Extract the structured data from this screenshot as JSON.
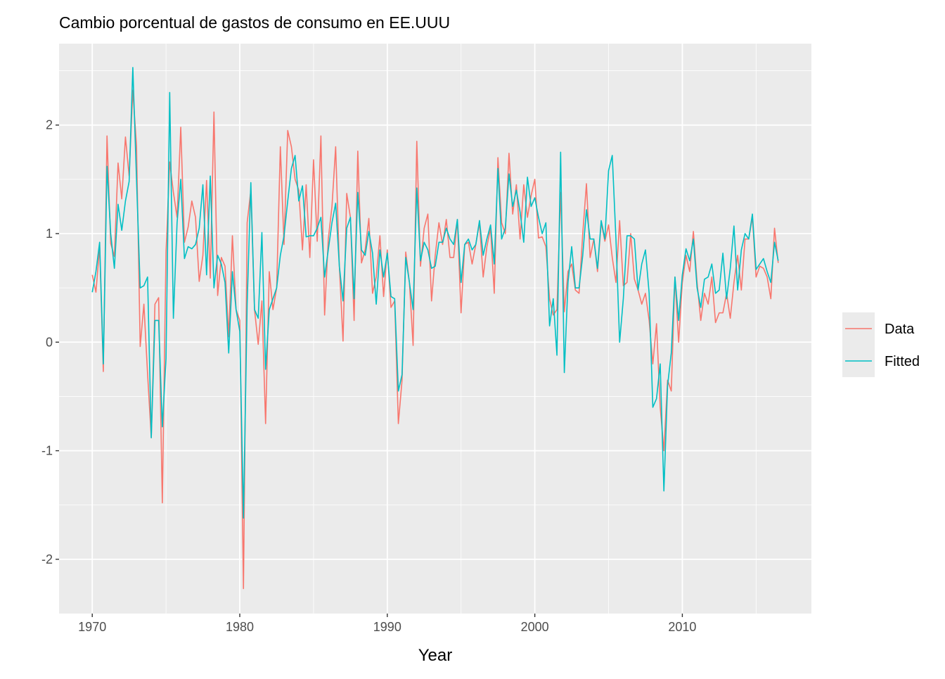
{
  "chart_data": {
    "type": "line",
    "title": "Cambio porcentual de gastos de consumo en EE.UUU",
    "xlabel": "Year",
    "ylabel": "",
    "x_start": 1970,
    "frequency": "quarterly",
    "xlim": [
      1967.75,
      2018.75
    ],
    "ylim": [
      -2.5,
      2.75
    ],
    "x_ticks": [
      1970,
      1980,
      1990,
      2000,
      2010
    ],
    "x_tick_labels": [
      "1970",
      "1980",
      "1990",
      "2000",
      "2010"
    ],
    "y_ticks": [
      -2,
      -1,
      0,
      1,
      2
    ],
    "y_tick_labels": [
      "-2",
      "-1",
      "0",
      "1",
      "2"
    ],
    "grid": true,
    "legend": {
      "placement": "right",
      "entries": [
        "Data",
        "Fitted"
      ]
    },
    "series": [
      {
        "name": "Data",
        "color": "#F8766D",
        "values": [
          0.62,
          0.46,
          0.88,
          -0.27,
          1.9,
          0.91,
          0.79,
          1.65,
          1.32,
          1.89,
          1.53,
          2.32,
          1.81,
          -0.04,
          0.35,
          -0.29,
          -0.88,
          0.35,
          0.41,
          -1.48,
          0.83,
          1.66,
          1.38,
          1.15,
          1.98,
          0.92,
          1.06,
          1.3,
          1.15,
          0.56,
          0.8,
          1.49,
          0.59,
          2.12,
          0.43,
          0.78,
          0.7,
          0.05,
          0.98,
          0.3,
          0.2,
          -2.27,
          1.1,
          1.4,
          0.3,
          -0.02,
          0.38,
          -0.75,
          0.65,
          0.3,
          0.5,
          1.8,
          0.9,
          1.95,
          1.8,
          1.5,
          1.4,
          0.85,
          1.45,
          0.78,
          1.68,
          0.93,
          1.9,
          0.25,
          0.95,
          1.25,
          1.8,
          0.7,
          0.01,
          1.37,
          1.15,
          0.2,
          1.76,
          0.73,
          0.85,
          1.14,
          0.45,
          0.6,
          0.98,
          0.42,
          0.85,
          0.32,
          0.38,
          -0.75,
          -0.35,
          0.83,
          0.55,
          -0.03,
          1.85,
          0.7,
          1.05,
          1.18,
          0.38,
          0.8,
          1.1,
          0.9,
          1.13,
          0.78,
          0.78,
          1.13,
          0.27,
          0.9,
          0.92,
          0.72,
          0.9,
          1.1,
          0.6,
          0.88,
          1.05,
          0.45,
          1.7,
          1.1,
          1.0,
          1.74,
          1.18,
          1.45,
          0.95,
          1.45,
          1.15,
          1.35,
          1.5,
          0.96,
          0.97,
          0.88,
          0.4,
          0.25,
          0.3,
          1.38,
          0.28,
          0.65,
          0.72,
          0.48,
          0.45,
          1.0,
          1.46,
          0.78,
          0.95,
          0.65,
          1.1,
          0.93,
          1.08,
          0.78,
          0.55,
          1.12,
          0.52,
          0.55,
          1.0,
          0.58,
          0.48,
          0.35,
          0.45,
          0.2,
          -0.2,
          0.17,
          -0.6,
          -1.0,
          -0.35,
          -0.45,
          0.6,
          0.0,
          0.55,
          0.8,
          0.65,
          1.02,
          0.55,
          0.2,
          0.45,
          0.35,
          0.6,
          0.18,
          0.27,
          0.27,
          0.45,
          0.22,
          0.55,
          0.8,
          0.48,
          0.95,
          0.95,
          1.15,
          0.6,
          0.7,
          0.68,
          0.6,
          0.4,
          1.05,
          0.73
        ]
      },
      {
        "name": "Fitted",
        "color": "#00BFC4",
        "values": [
          0.46,
          0.65,
          0.92,
          -0.2,
          1.62,
          1.0,
          0.68,
          1.27,
          1.03,
          1.3,
          1.48,
          2.53,
          1.5,
          0.5,
          0.52,
          0.6,
          -0.88,
          0.2,
          0.2,
          -0.78,
          -0.15,
          2.3,
          0.22,
          1.1,
          1.5,
          0.77,
          0.88,
          0.86,
          0.9,
          1.05,
          1.45,
          0.62,
          1.53,
          0.5,
          0.8,
          0.72,
          0.55,
          -0.1,
          0.65,
          0.3,
          0.1,
          -1.62,
          0.35,
          1.47,
          0.3,
          0.22,
          1.01,
          -0.25,
          0.3,
          0.4,
          0.5,
          0.8,
          0.98,
          1.3,
          1.6,
          1.72,
          1.3,
          1.44,
          0.97,
          0.98,
          0.98,
          1.05,
          1.15,
          0.6,
          0.85,
          1.1,
          1.28,
          0.7,
          0.38,
          1.05,
          1.15,
          0.4,
          1.38,
          0.85,
          0.8,
          1.02,
          0.82,
          0.35,
          0.85,
          0.6,
          0.82,
          0.42,
          0.4,
          -0.45,
          -0.3,
          0.78,
          0.55,
          0.3,
          1.42,
          0.75,
          0.92,
          0.85,
          0.68,
          0.7,
          0.92,
          0.92,
          1.05,
          0.95,
          0.9,
          1.13,
          0.55,
          0.9,
          0.95,
          0.85,
          0.9,
          1.12,
          0.8,
          0.95,
          1.08,
          0.72,
          1.6,
          0.95,
          1.05,
          1.55,
          1.25,
          1.4,
          1.2,
          0.92,
          1.52,
          1.25,
          1.33,
          1.15,
          1.0,
          1.1,
          0.15,
          0.4,
          -0.12,
          1.75,
          -0.28,
          0.55,
          0.88,
          0.5,
          0.5,
          0.8,
          1.22,
          0.95,
          0.95,
          0.68,
          1.12,
          0.95,
          1.58,
          1.72,
          0.95,
          0.0,
          0.4,
          0.98,
          0.98,
          0.95,
          0.48,
          0.72,
          0.85,
          0.45,
          -0.6,
          -0.52,
          -0.2,
          -1.37,
          -0.4,
          -0.1,
          0.6,
          0.2,
          0.62,
          0.86,
          0.75,
          0.95,
          0.5,
          0.32,
          0.58,
          0.6,
          0.72,
          0.45,
          0.48,
          0.82,
          0.4,
          0.68,
          1.07,
          0.48,
          0.85,
          1.0,
          0.95,
          1.18,
          0.67,
          0.72,
          0.77,
          0.65,
          0.55,
          0.92,
          0.75
        ]
      }
    ],
    "panel_background": "#EBEBEB",
    "grid_color": "#FFFFFF"
  }
}
